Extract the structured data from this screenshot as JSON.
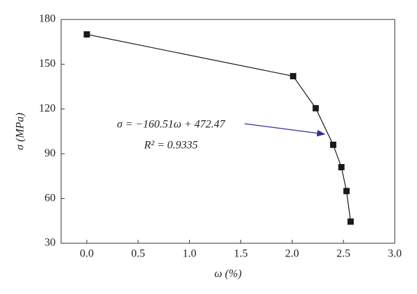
{
  "chart_data": {
    "type": "line",
    "x_label": "ω (%)",
    "y_label": "σ (MPa)",
    "series": [
      {
        "name": "σ",
        "color": "#1a1a1a",
        "x": [
          0.0,
          2.01,
          2.23,
          2.4,
          2.48,
          2.53,
          2.57
        ],
        "values": [
          170,
          142,
          120.5,
          96,
          81,
          65,
          44.5
        ]
      }
    ],
    "xlim": [
      -0.25,
      3.0
    ],
    "xticks": [
      {
        "value": 0,
        "label": "0.0"
      },
      0.5,
      {
        "value": 1,
        "label": "1.0"
      },
      1.5,
      {
        "value": 2,
        "label": "2.0"
      },
      2.5,
      {
        "value": 3,
        "label": "3.0"
      }
    ],
    "ylim": [
      30,
      180
    ],
    "yticks": [
      30,
      60,
      90,
      120,
      150,
      180
    ],
    "annotations": [
      "σ = −160.51ω + 472.47",
      "R² = 0.9335"
    ],
    "annotation_color": "#2e3192"
  }
}
